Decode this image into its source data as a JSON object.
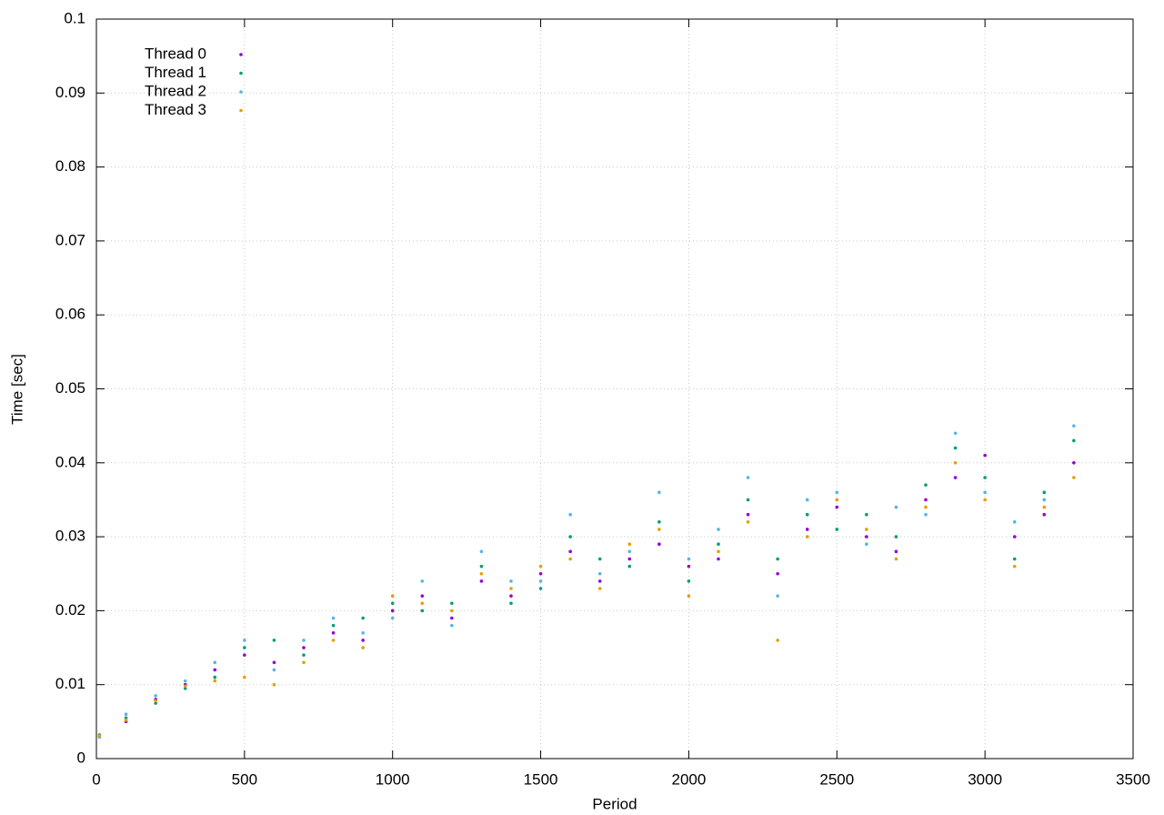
{
  "chart_data": {
    "type": "scatter",
    "x_label": "Period",
    "y_label": "Time [sec]",
    "xlim": [
      0,
      3500
    ],
    "xticks": [
      0,
      500,
      1000,
      1500,
      2000,
      2500,
      3000,
      3500
    ],
    "ylim": [
      0,
      0.1
    ],
    "yticks": [
      0,
      0.01,
      0.02,
      0.03,
      0.04,
      0.05,
      0.06,
      0.07,
      0.08,
      0.09,
      0.1
    ],
    "grid": true,
    "legend": "top-left",
    "x": [
      10,
      100,
      200,
      300,
      400,
      500,
      600,
      700,
      800,
      900,
      1000,
      1100,
      1200,
      1300,
      1400,
      1500,
      1600,
      1700,
      1800,
      1900,
      2000,
      2100,
      2200,
      2300,
      2400,
      2500,
      2600,
      2700,
      2800,
      2900,
      3000,
      3100,
      3200,
      3300
    ],
    "series": [
      {
        "name": "Thread 0",
        "color": "#9400d3",
        "values": [
          0.003,
          0.005,
          0.008,
          0.01,
          0.012,
          0.014,
          0.013,
          0.015,
          0.017,
          0.016,
          0.02,
          0.022,
          0.019,
          0.024,
          0.022,
          0.025,
          0.028,
          0.024,
          0.027,
          0.029,
          0.026,
          0.027,
          0.033,
          0.025,
          0.031,
          0.034,
          0.03,
          0.028,
          0.035,
          0.038,
          0.041,
          0.03,
          0.033,
          0.04
        ]
      },
      {
        "name": "Thread 1",
        "color": "#009e73",
        "values": [
          0.0032,
          0.0055,
          0.0075,
          0.0095,
          0.011,
          0.015,
          0.016,
          0.014,
          0.018,
          0.019,
          0.021,
          0.02,
          0.021,
          0.026,
          0.021,
          0.023,
          0.03,
          0.027,
          0.026,
          0.032,
          0.024,
          0.029,
          0.035,
          0.027,
          0.033,
          0.031,
          0.033,
          0.03,
          0.037,
          0.042,
          0.038,
          0.027,
          0.036,
          0.043
        ]
      },
      {
        "name": "Thread 2",
        "color": "#56b4e9",
        "values": [
          0.0029,
          0.006,
          0.0085,
          0.0105,
          0.013,
          0.016,
          0.012,
          0.016,
          0.019,
          0.017,
          0.019,
          0.024,
          0.018,
          0.028,
          0.024,
          0.024,
          0.033,
          0.025,
          0.028,
          0.036,
          0.027,
          0.031,
          0.038,
          0.022,
          0.035,
          0.036,
          0.029,
          0.034,
          0.033,
          0.044,
          0.036,
          0.032,
          0.035,
          0.045
        ]
      },
      {
        "name": "Thread 3",
        "color": "#e69f00",
        "values": [
          0.0031,
          0.0052,
          0.0078,
          0.0098,
          0.0105,
          0.011,
          0.01,
          0.013,
          0.016,
          0.015,
          0.022,
          0.021,
          0.02,
          0.025,
          0.023,
          0.026,
          0.027,
          0.023,
          0.029,
          0.031,
          0.022,
          0.028,
          0.032,
          0.016,
          0.03,
          0.035,
          0.031,
          0.027,
          0.034,
          0.04,
          0.035,
          0.026,
          0.034,
          0.038
        ]
      }
    ]
  }
}
